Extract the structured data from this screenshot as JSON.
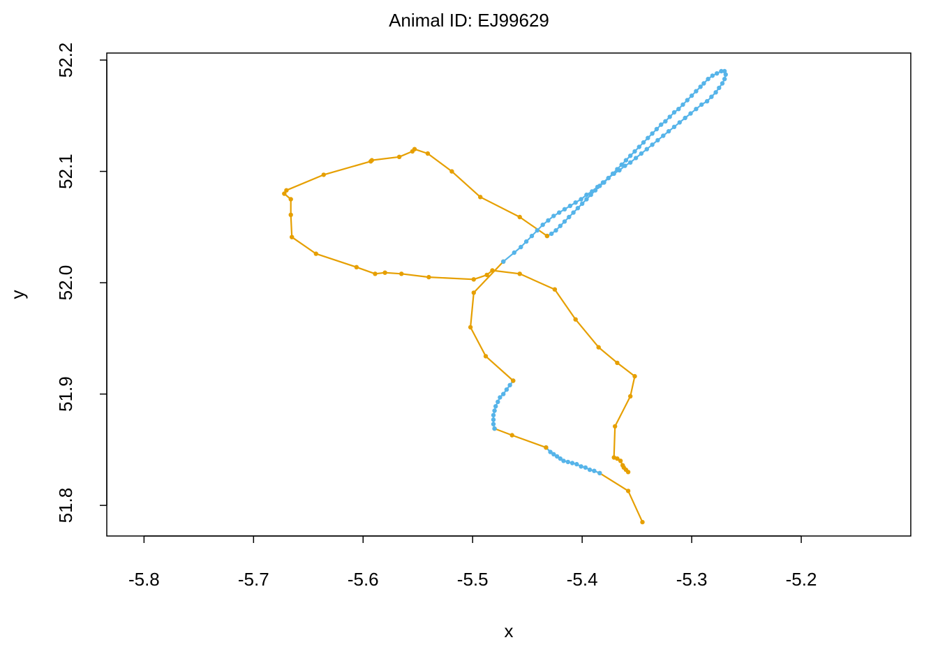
{
  "chart_data": {
    "type": "line",
    "title": "Animal ID: EJ99629",
    "xlabel": "x",
    "ylabel": "y",
    "xlim": [
      -5.834,
      -5.1
    ],
    "ylim": [
      51.7725,
      52.2063
    ],
    "x_ticks": [
      -5.8,
      -5.7,
      -5.6,
      -5.5,
      -5.4,
      -5.3,
      -5.2
    ],
    "x_tick_labels": [
      "-5.8",
      "-5.7",
      "-5.6",
      "-5.5",
      "-5.4",
      "-5.3",
      "-5.2"
    ],
    "y_ticks": [
      51.8,
      51.9,
      52.0,
      52.1,
      52.2
    ],
    "y_tick_labels": [
      "51.8",
      "51.9",
      "52.0",
      "52.1",
      "52.2"
    ],
    "box": true,
    "grid": false,
    "segment_colors": {
      "orange": "#E69F00",
      "blue": "#56B4E9"
    },
    "segments": [
      {
        "color": "orange",
        "points": [
          [
            -5.345,
            51.785
          ],
          [
            -5.358,
            51.813
          ],
          [
            -5.384,
            51.829
          ]
        ]
      },
      {
        "color": "blue",
        "points": [
          [
            -5.384,
            51.829
          ],
          [
            -5.389,
            51.831
          ],
          [
            -5.393,
            51.832
          ],
          [
            -5.397,
            51.834
          ],
          [
            -5.401,
            51.835
          ],
          [
            -5.405,
            51.837
          ],
          [
            -5.409,
            51.838
          ],
          [
            -5.413,
            51.839
          ],
          [
            -5.417,
            51.84
          ],
          [
            -5.42,
            51.842
          ],
          [
            -5.423,
            51.844
          ],
          [
            -5.426,
            51.846
          ],
          [
            -5.429,
            51.848
          ],
          [
            -5.433,
            51.852
          ]
        ]
      },
      {
        "color": "orange",
        "points": [
          [
            -5.433,
            51.852
          ],
          [
            -5.464,
            51.863
          ],
          [
            -5.48,
            51.869
          ]
        ]
      },
      {
        "color": "blue",
        "points": [
          [
            -5.48,
            51.869
          ],
          [
            -5.481,
            51.873
          ],
          [
            -5.481,
            51.877
          ],
          [
            -5.481,
            51.881
          ],
          [
            -5.48,
            51.885
          ],
          [
            -5.479,
            51.889
          ],
          [
            -5.477,
            51.893
          ],
          [
            -5.475,
            51.897
          ],
          [
            -5.472,
            51.9
          ],
          [
            -5.469,
            51.904
          ],
          [
            -5.466,
            51.908
          ],
          [
            -5.463,
            51.912
          ]
        ]
      },
      {
        "color": "orange",
        "points": [
          [
            -5.463,
            51.912
          ],
          [
            -5.488,
            51.934
          ],
          [
            -5.502,
            51.96
          ],
          [
            -5.499,
            51.991
          ],
          [
            -5.472,
            52.019
          ]
        ]
      },
      {
        "color": "blue",
        "points": [
          [
            -5.472,
            52.019
          ],
          [
            -5.462,
            52.027
          ],
          [
            -5.456,
            52.032
          ],
          [
            -5.451,
            52.037
          ],
          [
            -5.446,
            52.042
          ],
          [
            -5.441,
            52.047
          ],
          [
            -5.436,
            52.052
          ],
          [
            -5.431,
            52.056
          ],
          [
            -5.426,
            52.06
          ],
          [
            -5.421,
            52.063
          ],
          [
            -5.416,
            52.066
          ],
          [
            -5.411,
            52.069
          ],
          [
            -5.406,
            52.072
          ],
          [
            -5.401,
            52.075
          ],
          [
            -5.396,
            52.079
          ],
          [
            -5.391,
            52.082
          ],
          [
            -5.386,
            52.086
          ],
          [
            -5.381,
            52.09
          ],
          [
            -5.376,
            52.094
          ],
          [
            -5.371,
            52.098
          ],
          [
            -5.366,
            52.101
          ],
          [
            -5.361,
            52.105
          ],
          [
            -5.356,
            52.108
          ],
          [
            -5.351,
            52.112
          ],
          [
            -5.346,
            52.116
          ],
          [
            -5.341,
            52.12
          ],
          [
            -5.336,
            52.124
          ],
          [
            -5.331,
            52.128
          ],
          [
            -5.326,
            52.132
          ],
          [
            -5.321,
            52.136
          ],
          [
            -5.316,
            52.14
          ],
          [
            -5.311,
            52.144
          ],
          [
            -5.306,
            52.148
          ],
          [
            -5.301,
            52.152
          ],
          [
            -5.296,
            52.156
          ],
          [
            -5.291,
            52.16
          ],
          [
            -5.286,
            52.163
          ],
          [
            -5.282,
            52.167
          ],
          [
            -5.278,
            52.171
          ],
          [
            -5.275,
            52.175
          ],
          [
            -5.272,
            52.179
          ],
          [
            -5.27,
            52.183
          ],
          [
            -5.269,
            52.187
          ],
          [
            -5.27,
            52.19
          ],
          [
            -5.273,
            52.19
          ],
          [
            -5.277,
            52.188
          ],
          [
            -5.281,
            52.186
          ],
          [
            -5.285,
            52.183
          ],
          [
            -5.289,
            52.179
          ],
          [
            -5.292,
            52.176
          ],
          [
            -5.296,
            52.172
          ],
          [
            -5.3,
            52.168
          ],
          [
            -5.304,
            52.164
          ],
          [
            -5.308,
            52.16
          ],
          [
            -5.312,
            52.156
          ],
          [
            -5.316,
            52.153
          ],
          [
            -5.32,
            52.149
          ],
          [
            -5.324,
            52.145
          ],
          [
            -5.328,
            52.142
          ],
          [
            -5.332,
            52.138
          ],
          [
            -5.336,
            52.134
          ],
          [
            -5.34,
            52.13
          ],
          [
            -5.344,
            52.126
          ],
          [
            -5.348,
            52.122
          ],
          [
            -5.352,
            52.118
          ],
          [
            -5.356,
            52.114
          ],
          [
            -5.36,
            52.11
          ],
          [
            -5.364,
            52.106
          ],
          [
            -5.368,
            52.102
          ],
          [
            -5.372,
            52.098
          ],
          [
            -5.376,
            52.094
          ],
          [
            -5.38,
            52.09
          ],
          [
            -5.384,
            52.087
          ],
          [
            -5.388,
            52.083
          ],
          [
            -5.392,
            52.079
          ],
          [
            -5.396,
            52.075
          ],
          [
            -5.4,
            52.071
          ],
          [
            -5.404,
            52.067
          ],
          [
            -5.408,
            52.063
          ],
          [
            -5.412,
            52.059
          ],
          [
            -5.416,
            52.055
          ],
          [
            -5.42,
            52.051
          ],
          [
            -5.424,
            52.047
          ],
          [
            -5.428,
            52.044
          ],
          [
            -5.432,
            52.042
          ]
        ]
      },
      {
        "color": "orange",
        "points": [
          [
            -5.432,
            52.042
          ],
          [
            -5.457,
            52.059
          ],
          [
            -5.493,
            52.077
          ],
          [
            -5.519,
            52.1
          ],
          [
            -5.541,
            52.116
          ],
          [
            -5.553,
            52.12
          ],
          [
            -5.555,
            52.118
          ],
          [
            -5.567,
            52.113
          ],
          [
            -5.592,
            52.11
          ],
          [
            -5.593,
            52.109
          ],
          [
            -5.636,
            52.097
          ],
          [
            -5.67,
            52.083
          ],
          [
            -5.672,
            52.08
          ],
          [
            -5.666,
            52.075
          ],
          [
            -5.666,
            52.061
          ],
          [
            -5.665,
            52.041
          ],
          [
            -5.643,
            52.026
          ],
          [
            -5.606,
            52.014
          ],
          [
            -5.589,
            52.008
          ],
          [
            -5.58,
            52.009
          ],
          [
            -5.565,
            52.008
          ],
          [
            -5.54,
            52.005
          ],
          [
            -5.499,
            52.003
          ],
          [
            -5.487,
            52.007
          ],
          [
            -5.482,
            52.011
          ],
          [
            -5.457,
            52.008
          ],
          [
            -5.425,
            51.994
          ],
          [
            -5.406,
            51.967
          ],
          [
            -5.385,
            51.942
          ],
          [
            -5.368,
            51.928
          ],
          [
            -5.352,
            51.916
          ],
          [
            -5.356,
            51.898
          ],
          [
            -5.37,
            51.871
          ],
          [
            -5.371,
            51.843
          ],
          [
            -5.368,
            51.842
          ],
          [
            -5.365,
            51.84
          ],
          [
            -5.363,
            51.836
          ],
          [
            -5.362,
            51.834
          ],
          [
            -5.36,
            51.832
          ],
          [
            -5.358,
            51.83
          ]
        ]
      }
    ]
  }
}
